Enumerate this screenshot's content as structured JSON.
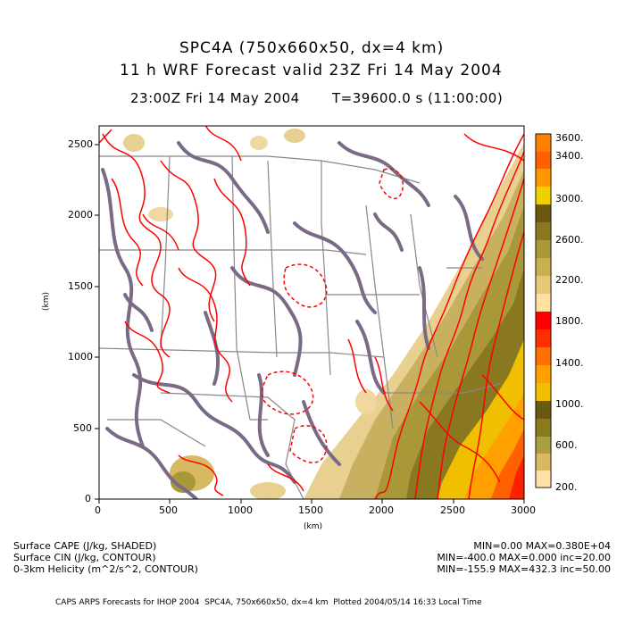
{
  "header": {
    "title_line1": "SPC4A (750x660x50, dx=4 km)",
    "title_line2": "11 h WRF Forecast valid 23Z Fri 14 May 2004",
    "time_line": "23:00Z Fri 14 May 2004",
    "t_line": "T=39600.0 s (11:00:00)"
  },
  "map": {
    "xlabel": "(km)",
    "ylabel": "(km)",
    "x_ticks": [
      "0",
      "500",
      "1000",
      "1500",
      "2000",
      "2500",
      "3000"
    ],
    "y_ticks": [
      "0",
      "500",
      "1000",
      "1500",
      "2000",
      "2500"
    ],
    "x_range": [
      0,
      3000
    ],
    "y_range": [
      0,
      2640
    ]
  },
  "colorbar": {
    "labels": [
      "3600.",
      "3400.",
      "3000.",
      "2600.",
      "2200.",
      "1800.",
      "1400.",
      "1000.",
      "600.",
      "200."
    ],
    "colors": [
      "#ffe0a8",
      "#f0d08c",
      "#d8b860",
      "#a8a040",
      "#8a7a20",
      "#6a5a10",
      "#f0c000",
      "#ffa000",
      "#ff7000",
      "#ff3000",
      "#ff0000",
      "#ffe0a0",
      "#e8c878",
      "#c8b050",
      "#a89838",
      "#8a7820",
      "#f0d000",
      "#ff9800",
      "#ff6000",
      "#ff8000"
    ]
  },
  "fields": {
    "cape": {
      "label": "Surface CAPE (J/kg, SHADED)",
      "stats": "MIN=0.00 MAX=0.380E+04"
    },
    "cin": {
      "label": "Surface CIN (J/kg, CONTOUR)",
      "stats": "MIN=-400.0 MAX=0.000 inc=20.00"
    },
    "helicity": {
      "label": "0-3km Helicity (m^2/s^2, CONTOUR)",
      "stats": "MIN=-155.9 MAX=432.3 inc=50.00"
    }
  },
  "footer": {
    "text": "CAPS ARPS Forecasts for IHOP 2004  SPC4A, 750x660x50, dx=4 km  Plotted 2004/05/14 16:33 Local Time"
  }
}
